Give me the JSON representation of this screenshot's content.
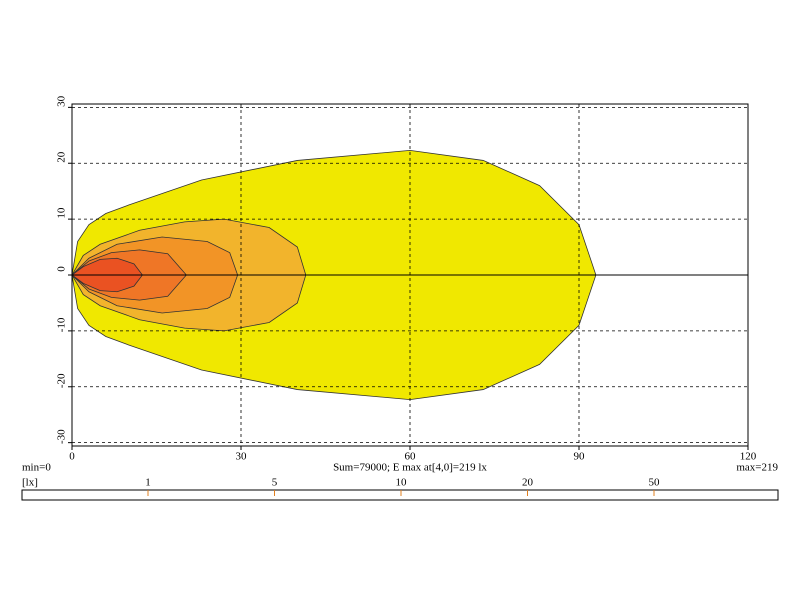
{
  "chart_data": {
    "type": "contour",
    "xlim": [
      0,
      120
    ],
    "ylim": [
      -30.6,
      30.6
    ],
    "xticks": [
      0,
      30,
      60,
      90,
      120
    ],
    "yticks": [
      -30,
      -20,
      -10,
      0,
      10,
      20,
      30
    ],
    "grid": true,
    "contours": [
      {
        "level": 1,
        "color": "#f0e800",
        "x": [
          0,
          1,
          3,
          6,
          10,
          23,
          40,
          60,
          73,
          83,
          90,
          93,
          90,
          83,
          73,
          60,
          40,
          23,
          10,
          6,
          3,
          1
        ],
        "y": [
          0,
          6,
          9,
          11,
          12.5,
          17,
          20.5,
          22.3,
          20.5,
          16,
          9,
          0,
          -9,
          -16,
          -20.5,
          -22.3,
          -20.5,
          -17,
          -12.5,
          -11,
          -9,
          -6
        ]
      },
      {
        "level": 5,
        "color": "#f2b42c",
        "x": [
          0,
          2,
          5,
          12,
          20,
          27,
          35,
          40,
          41.5,
          40,
          35,
          27,
          20,
          12,
          5,
          2
        ],
        "y": [
          0,
          3.5,
          5.5,
          8,
          9.5,
          10,
          8.5,
          5,
          0,
          -5,
          -8.5,
          -10,
          -9.5,
          -8,
          -5.5,
          -3.5
        ]
      },
      {
        "level": 10,
        "color": "#f29426",
        "x": [
          0,
          3,
          8,
          16,
          24,
          28,
          29.4,
          28,
          24,
          16,
          8,
          3
        ],
        "y": [
          0,
          3,
          5.5,
          6.8,
          6,
          4,
          0,
          -4,
          -6,
          -6.8,
          -5.5,
          -3
        ]
      },
      {
        "level": 20,
        "color": "#ef7626",
        "x": [
          0,
          3,
          7,
          12,
          17,
          20.3,
          17,
          12,
          7,
          3
        ],
        "y": [
          0,
          2.5,
          4,
          4.5,
          3.8,
          0,
          -3.8,
          -4.5,
          -4,
          -2.5
        ]
      },
      {
        "level": 50,
        "color": "#ea5222",
        "x": [
          0,
          2,
          5,
          8,
          11,
          12.5,
          11,
          8,
          5,
          2
        ],
        "y": [
          0,
          1.5,
          2.8,
          3,
          2,
          0,
          -2,
          -3,
          -2.8,
          -1.5
        ]
      }
    ],
    "min_label": "min=0",
    "summary": "Sum=79000; E max at[4,0]=219 lx",
    "max_label": "max=219",
    "unit_label": "[lx]"
  }
}
